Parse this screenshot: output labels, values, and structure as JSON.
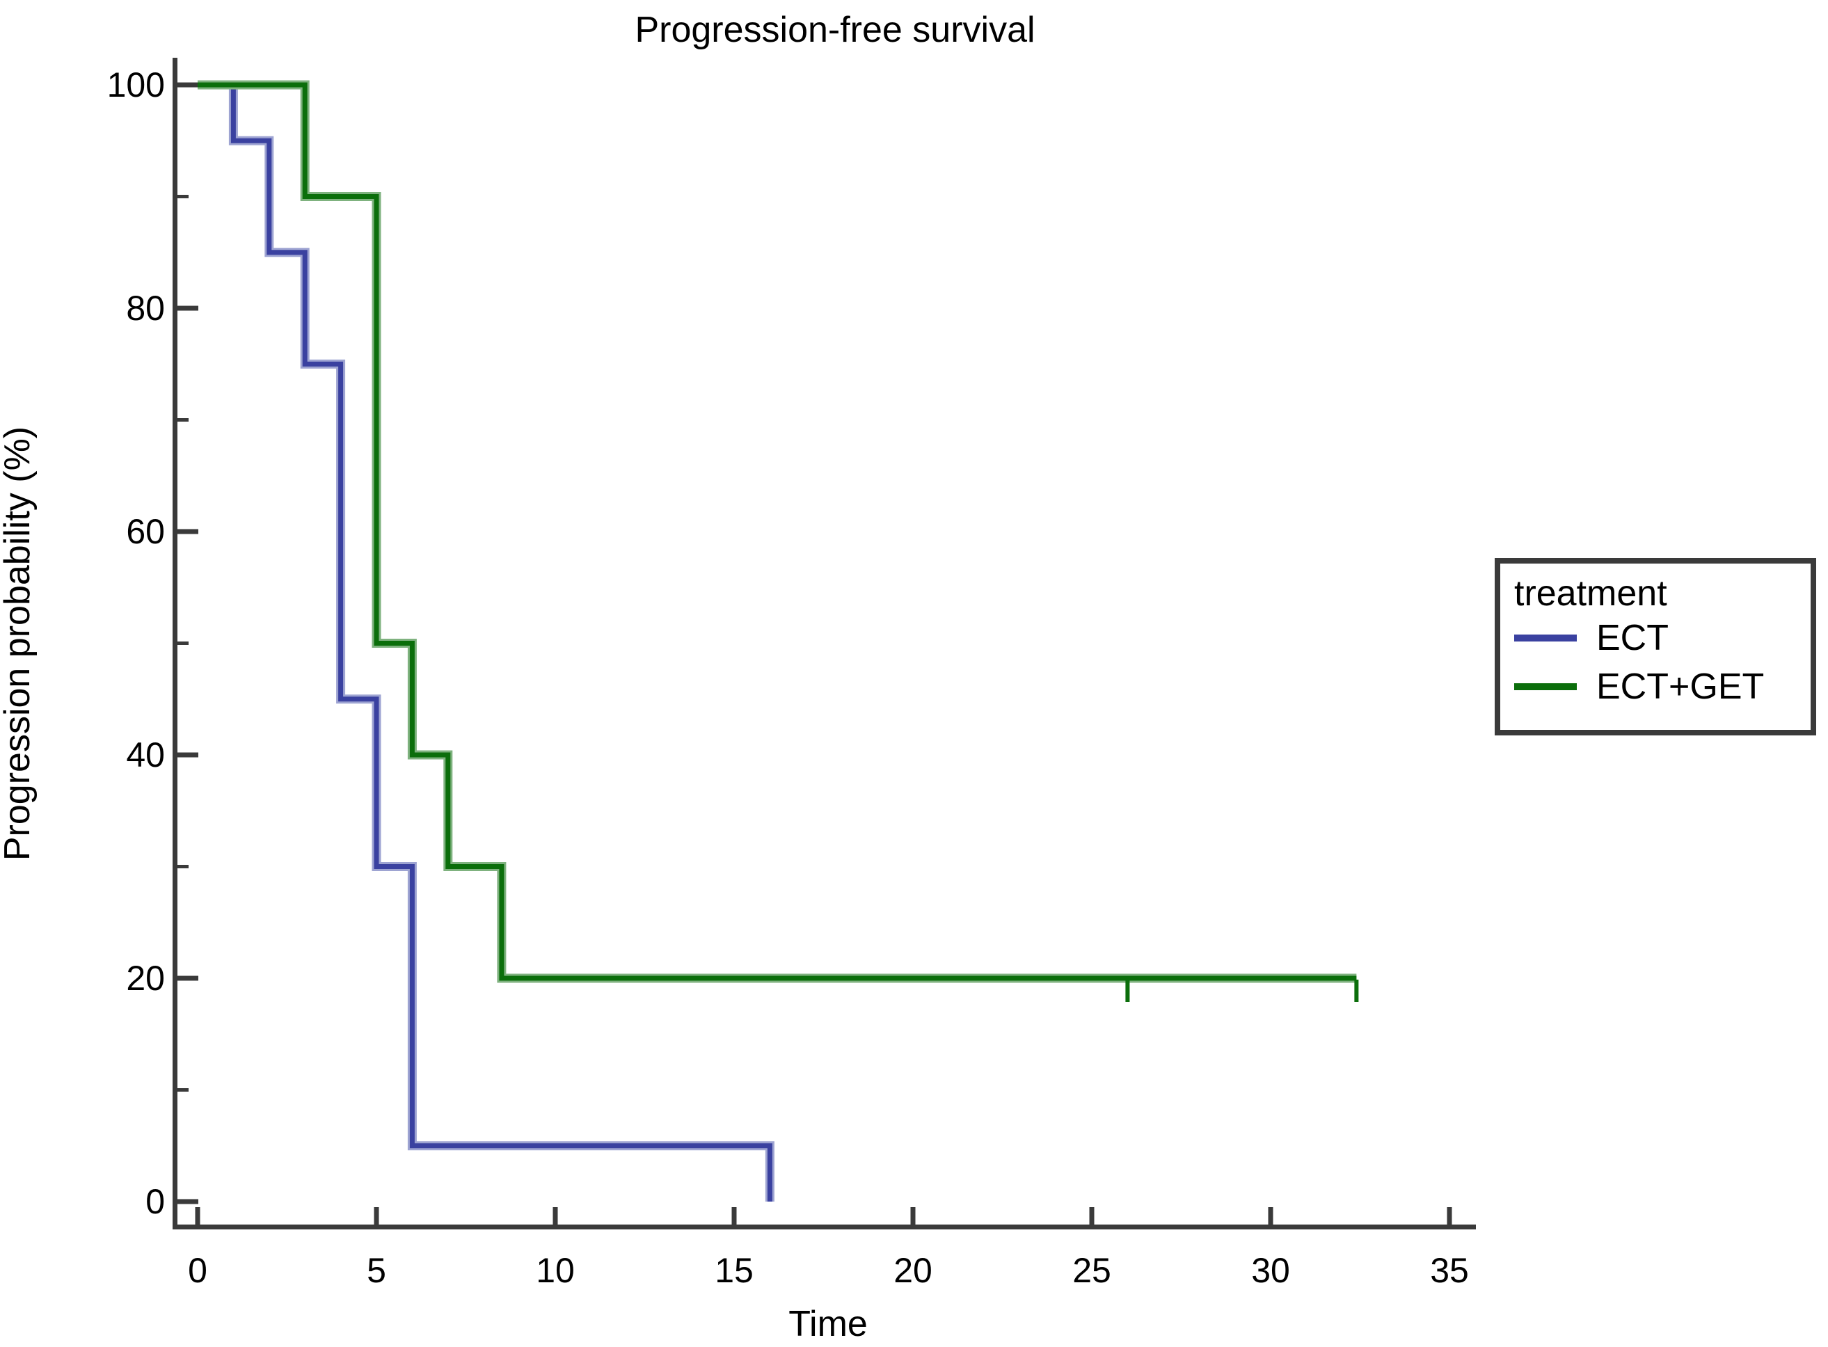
{
  "figure": {
    "title": "Progression-free survival",
    "background": "#ffffff"
  },
  "axes": {
    "x": {
      "label": "Time",
      "tick_labels": [
        "0",
        "5",
        "10",
        "15",
        "20",
        "25",
        "30",
        "35"
      ],
      "ticks": [
        0,
        5,
        10,
        15,
        20,
        25,
        30,
        35
      ],
      "range": [
        0,
        35
      ]
    },
    "y": {
      "label": "Progression probability (%)",
      "tick_labels": [
        "0",
        "20",
        "40",
        "60",
        "80",
        "100"
      ],
      "ticks": [
        0,
        20,
        40,
        60,
        80,
        100
      ],
      "minor_ticks": [
        10,
        30,
        50,
        70,
        90
      ],
      "range": [
        0,
        100
      ]
    }
  },
  "legend": {
    "title": "treatment",
    "items": [
      {
        "label": "ECT",
        "color": "#3A41A0"
      },
      {
        "label": "ECT+GET",
        "color": "#0B6E0B"
      }
    ]
  },
  "colors": {
    "axis": "#3a3a3a",
    "text": "#000000",
    "background": "#ffffff"
  },
  "chart_data": {
    "type": "line",
    "subtype": "kaplan-meier-step-survival",
    "title": "Progression-free survival",
    "xlabel": "Time",
    "ylabel": "Progression probability (%)",
    "xlim": [
      0,
      35
    ],
    "ylim": [
      0,
      100
    ],
    "grid": false,
    "legend_position": "center-right",
    "series": [
      {
        "name": "ECT",
        "color": "#3A41A0",
        "halo_color": "#9EA4D2",
        "steps": [
          [
            0,
            100
          ],
          [
            1,
            100
          ],
          [
            1,
            95
          ],
          [
            2,
            95
          ],
          [
            2,
            85
          ],
          [
            3,
            85
          ],
          [
            3,
            75
          ],
          [
            4,
            75
          ],
          [
            4,
            45
          ],
          [
            5,
            45
          ],
          [
            5,
            30
          ],
          [
            6,
            30
          ],
          [
            6,
            5
          ],
          [
            16,
            5
          ],
          [
            16,
            0
          ]
        ],
        "event_times": [
          1,
          2,
          3,
          4,
          5,
          6,
          16
        ],
        "censor_marks": []
      },
      {
        "name": "ECT+GET",
        "color": "#0B6E0B",
        "halo_color": "#7FB27F",
        "steps": [
          [
            0,
            100
          ],
          [
            3,
            100
          ],
          [
            3,
            90
          ],
          [
            5,
            90
          ],
          [
            5,
            50
          ],
          [
            6,
            50
          ],
          [
            6,
            40
          ],
          [
            7,
            40
          ],
          [
            7,
            30
          ],
          [
            8.5,
            30
          ],
          [
            8.5,
            20
          ],
          [
            32.4,
            20
          ]
        ],
        "event_times": [
          3,
          5,
          6,
          7,
          8.5
        ],
        "censor_marks": [
          [
            26,
            20
          ],
          [
            32.4,
            20
          ]
        ]
      }
    ]
  }
}
